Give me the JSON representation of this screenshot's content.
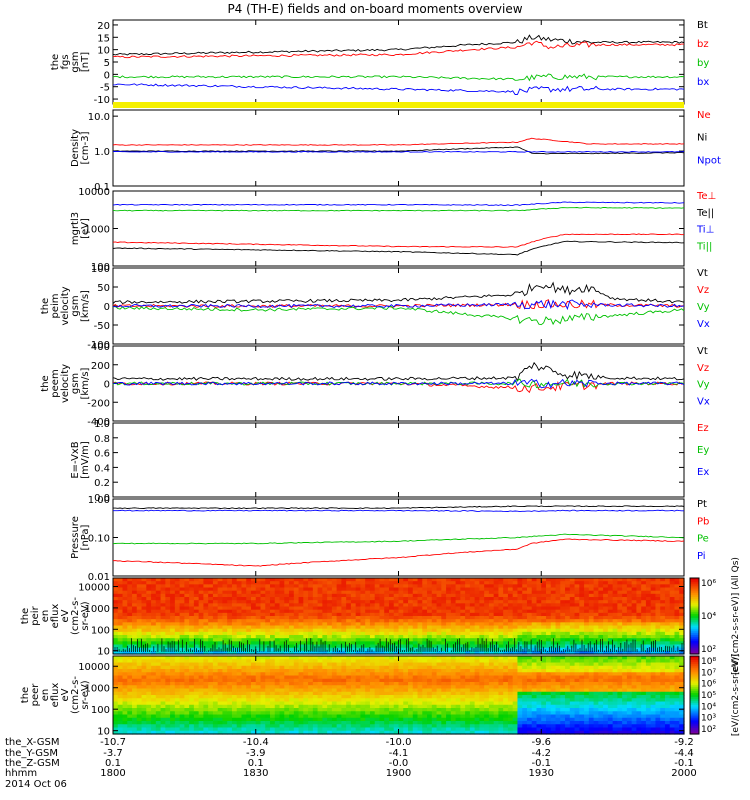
{
  "title": "P4 (TH-E) fields and on-board moments overview",
  "chart_data": [
    {
      "id": "bfield",
      "type": "line",
      "ylabel": [
        "the",
        "fgs",
        "gsm",
        "[nT]"
      ],
      "ylim": [
        -12,
        22
      ],
      "yticks": [
        -10,
        -5,
        0,
        5,
        10,
        15,
        20
      ],
      "series": [
        {
          "name": "Bt",
          "color": "#000000",
          "x": [
            1800,
            1830,
            1900,
            1915,
            1925,
            1928,
            1932,
            1940,
            2000
          ],
          "y": [
            8,
            9,
            10,
            12,
            13,
            15,
            14,
            13,
            13
          ]
        },
        {
          "name": "bz",
          "color": "#ff0000",
          "x": [
            1800,
            1830,
            1900,
            1915,
            1925,
            1928,
            1932,
            1940,
            2000
          ],
          "y": [
            7,
            7.5,
            8,
            10,
            11,
            13,
            11,
            12,
            12
          ]
        },
        {
          "name": "by",
          "color": "#00c000",
          "x": [
            1800,
            1830,
            1900,
            1925,
            1930,
            2000
          ],
          "y": [
            -1,
            -1,
            -1,
            -2,
            -1,
            -1
          ]
        },
        {
          "name": "bx",
          "color": "#0000ff",
          "x": [
            1800,
            1830,
            1900,
            1925,
            1930,
            2000
          ],
          "y": [
            -4,
            -5,
            -6,
            -7,
            -6,
            -6
          ]
        }
      ]
    },
    {
      "id": "density",
      "type": "line",
      "ylabel": [
        "Density",
        "[cm-3]"
      ],
      "yscale": "log",
      "ylim": [
        0.1,
        15
      ],
      "yticks": [
        0.1,
        1.0,
        10.0
      ],
      "ytick_labels": [
        "0.1",
        "1.0",
        "10.0"
      ],
      "series": [
        {
          "name": "Ne",
          "color": "#ff0000",
          "x": [
            1800,
            1900,
            1925,
            1928,
            1940,
            2000
          ],
          "y": [
            1.5,
            1.5,
            1.8,
            2.3,
            1.6,
            1.6
          ]
        },
        {
          "name": "Ni",
          "color": "#000000",
          "x": [
            1800,
            1900,
            1925,
            1928,
            1940,
            2000
          ],
          "y": [
            1.0,
            1.0,
            1.3,
            0.85,
            0.85,
            0.9
          ]
        },
        {
          "name": "Npot",
          "color": "#0000ff",
          "x": [
            1800,
            1900,
            2000
          ],
          "y": [
            0.95,
            0.95,
            0.95
          ]
        }
      ]
    },
    {
      "id": "temperature",
      "type": "line",
      "ylabel": [
        "mgrtl3",
        "[eV]"
      ],
      "yscale": "log",
      "ylim": [
        100,
        10000
      ],
      "yticks": [
        100,
        1000,
        10000
      ],
      "ytick_labels": [
        "100",
        "1000",
        "10000"
      ],
      "series": [
        {
          "name": "Te⊥",
          "color": "#ff0000",
          "x": [
            1800,
            1830,
            1900,
            1925,
            1935,
            2000
          ],
          "y": [
            430,
            380,
            330,
            320,
            700,
            700
          ]
        },
        {
          "name": "Te||",
          "color": "#000000",
          "x": [
            1800,
            1830,
            1900,
            1925,
            1935,
            2000
          ],
          "y": [
            300,
            270,
            240,
            200,
            450,
            420
          ]
        },
        {
          "name": "Ti⊥",
          "color": "#0000ff",
          "x": [
            1800,
            1900,
            1925,
            1935,
            2000
          ],
          "y": [
            4300,
            4300,
            4200,
            5000,
            4800
          ]
        },
        {
          "name": "Ti||",
          "color": "#00c000",
          "x": [
            1800,
            1900,
            1925,
            1935,
            2000
          ],
          "y": [
            3000,
            3000,
            3000,
            3600,
            3500
          ]
        }
      ]
    },
    {
      "id": "ion_velocity",
      "type": "line",
      "ylabel": [
        "the",
        "peim",
        "velocity",
        "gsm",
        "[km/s]"
      ],
      "ylim": [
        -100,
        100
      ],
      "yticks": [
        -100,
        -50,
        0,
        50,
        100
      ],
      "series": [
        {
          "name": "Vt",
          "color": "#000000",
          "x": [
            1800,
            1900,
            1925,
            1930,
            1935,
            1940,
            1945,
            2000
          ],
          "y": [
            10,
            15,
            30,
            60,
            40,
            50,
            20,
            10
          ]
        },
        {
          "name": "Vz",
          "color": "#ff0000",
          "x": [
            1800,
            1900,
            1930,
            2000
          ],
          "y": [
            0,
            0,
            5,
            0
          ]
        },
        {
          "name": "Vy",
          "color": "#00c000",
          "x": [
            1800,
            1830,
            1900,
            1930,
            2000
          ],
          "y": [
            -5,
            -10,
            -5,
            -40,
            -10
          ]
        },
        {
          "name": "Vx",
          "color": "#0000ff",
          "x": [
            1800,
            1900,
            1930,
            2000
          ],
          "y": [
            0,
            0,
            5,
            0
          ]
        }
      ]
    },
    {
      "id": "electron_velocity",
      "type": "line",
      "ylabel": [
        "the",
        "peem",
        "velocity",
        "gsm",
        "[km/s]"
      ],
      "ylim": [
        -400,
        400
      ],
      "yticks": [
        -400,
        -200,
        0,
        200,
        400
      ],
      "series": [
        {
          "name": "Vt",
          "color": "#000000",
          "x": [
            1800,
            1900,
            1925,
            1928,
            1935,
            1945,
            2000
          ],
          "y": [
            50,
            50,
            60,
            200,
            100,
            60,
            50
          ]
        },
        {
          "name": "Vz",
          "color": "#ff0000",
          "x": [
            1800,
            1900,
            1928,
            1945,
            2000
          ],
          "y": [
            0,
            0,
            -50,
            0,
            0
          ]
        },
        {
          "name": "Vy",
          "color": "#00c000",
          "x": [
            1800,
            1900,
            2000
          ],
          "y": [
            0,
            0,
            0
          ]
        },
        {
          "name": "Vx",
          "color": "#0000ff",
          "x": [
            1800,
            1900,
            2000
          ],
          "y": [
            0,
            0,
            0
          ]
        }
      ]
    },
    {
      "id": "efield",
      "type": "line",
      "ylabel": [
        "E=-VxB",
        "[mV/m]"
      ],
      "ylim": [
        0,
        1.0
      ],
      "yticks": [
        0.0,
        0.2,
        0.4,
        0.6,
        0.8,
        1.0
      ],
      "ytick_labels": [
        "0.0",
        "0.2",
        "0.4",
        "0.6",
        "0.8",
        "1.0"
      ],
      "series": [
        {
          "name": "Ez",
          "color": "#ff0000",
          "x": [],
          "y": []
        },
        {
          "name": "Ey",
          "color": "#00c000",
          "x": [],
          "y": []
        },
        {
          "name": "Ex",
          "color": "#0000ff",
          "x": [],
          "y": []
        }
      ]
    },
    {
      "id": "pressure",
      "type": "line",
      "ylabel": [
        "Pressure",
        "[nPa]"
      ],
      "yscale": "log",
      "ylim": [
        0.01,
        1.0
      ],
      "yticks": [
        0.01,
        0.1,
        1.0
      ],
      "ytick_labels": [
        "0.01",
        "0.10",
        "1.00"
      ],
      "series": [
        {
          "name": "Pt",
          "color": "#000000",
          "x": [
            1800,
            1900,
            1925,
            1935,
            2000
          ],
          "y": [
            0.58,
            0.58,
            0.65,
            0.65,
            0.65
          ]
        },
        {
          "name": "Pb",
          "color": "#ff0000",
          "x": [
            1800,
            1830,
            1900,
            1925,
            1928,
            1935,
            2000
          ],
          "y": [
            0.025,
            0.018,
            0.03,
            0.05,
            0.07,
            0.09,
            0.08
          ]
        },
        {
          "name": "Pe",
          "color": "#00c000",
          "x": [
            1800,
            1830,
            1900,
            1925,
            1935,
            2000
          ],
          "y": [
            0.07,
            0.07,
            0.08,
            0.1,
            0.12,
            0.1
          ]
        },
        {
          "name": "Pi",
          "color": "#0000ff",
          "x": [
            1800,
            1900,
            1925,
            1935,
            2000
          ],
          "y": [
            0.5,
            0.5,
            0.48,
            0.5,
            0.5
          ]
        }
      ]
    },
    {
      "id": "ion_eflux",
      "type": "heatmap",
      "ylabel": [
        "the",
        "peir",
        "en",
        "eflux",
        "eV",
        "(cm2-s-",
        "sr-eV)"
      ],
      "yscale": "log",
      "ylim": [
        7,
        25000
      ],
      "yticks": [
        10,
        100,
        1000,
        10000
      ],
      "ytick_labels": [
        "10",
        "100",
        "1000",
        "10000"
      ],
      "colorbar_label": "[eV/(cm2-s-sr-eV)] (All Qs)",
      "colorbar_ticks": [
        "10²",
        "10⁴",
        "10⁶"
      ]
    },
    {
      "id": "electron_eflux",
      "type": "heatmap",
      "ylabel": [
        "the",
        "peer",
        "en",
        "eflux",
        "eV",
        "(cm2-s-",
        "sr-eV)"
      ],
      "yscale": "log",
      "ylim": [
        7,
        30000
      ],
      "yticks": [
        10,
        100,
        1000,
        10000
      ],
      "ytick_labels": [
        "10",
        "100",
        "1000",
        "10000"
      ],
      "colorbar_label": "[eV/(cm2-s-sr-eV)]",
      "colorbar_ticks": [
        "10²",
        "10³",
        "10⁴",
        "10⁵",
        "10⁶",
        "10⁷",
        "10⁸"
      ]
    }
  ],
  "xaxis": {
    "row_labels": [
      "the_X-GSM",
      "the_Y-GSM",
      "the_Z-GSM",
      "hhmm"
    ],
    "date": "2014 Oct 06",
    "ticks": [
      {
        "t": 1800,
        "vals": [
          "-10.7",
          "-3.7",
          "0.1",
          "1800"
        ]
      },
      {
        "t": 1830,
        "vals": [
          "-10.4",
          "-3.9",
          "0.1",
          "1830"
        ]
      },
      {
        "t": 1900,
        "vals": [
          "-10.0",
          "-4.1",
          "-0.0",
          "1900"
        ]
      },
      {
        "t": 1930,
        "vals": [
          "-9.6",
          "-4.2",
          "-0.1",
          "1930"
        ]
      },
      {
        "t": 2000,
        "vals": [
          "-9.2",
          "-4.4",
          "-0.1",
          "2000"
        ]
      }
    ]
  }
}
